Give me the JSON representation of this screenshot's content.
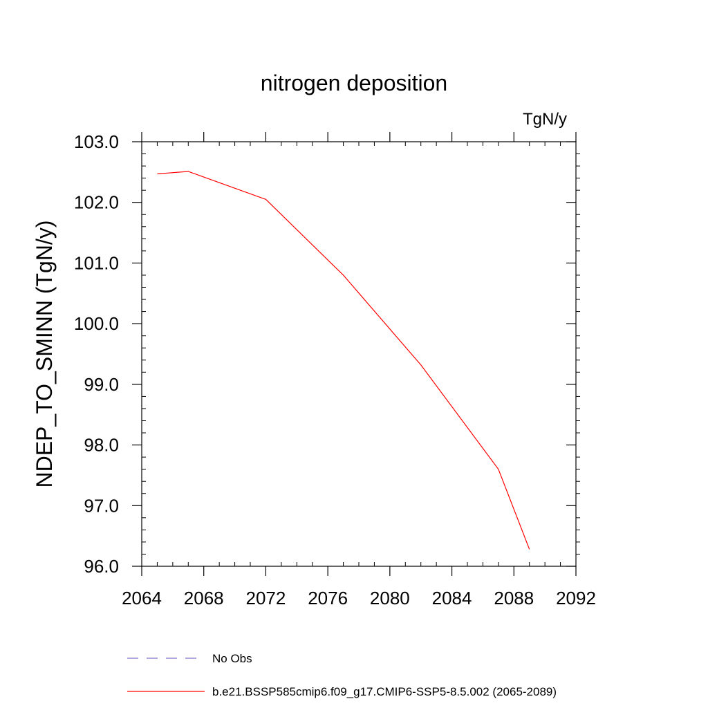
{
  "chart_data": {
    "type": "line",
    "title": "nitrogen deposition",
    "units_label": "TgN/y",
    "xlabel": "",
    "ylabel": "NDEP_TO_SMINN  (TgN/y)",
    "xlim": [
      2064,
      2092
    ],
    "ylim": [
      96.0,
      103.0
    ],
    "x_ticks": [
      2064,
      2068,
      2072,
      2076,
      2080,
      2084,
      2088,
      2092
    ],
    "x_tick_labels": [
      "2064",
      "2068",
      "2072",
      "2076",
      "2080",
      "2084",
      "2088",
      "2092"
    ],
    "y_ticks": [
      96.0,
      97.0,
      98.0,
      99.0,
      100.0,
      101.0,
      102.0,
      103.0
    ],
    "y_tick_labels": [
      "96.0",
      "97.0",
      "98.0",
      "99.0",
      "100.0",
      "101.0",
      "102.0",
      "103.0"
    ],
    "grid": false,
    "legend_position": "bottom",
    "series": [
      {
        "name": "No Obs",
        "color": "#7b74c9",
        "dash": "dashed",
        "x": [],
        "y": []
      },
      {
        "name": "b.e21.BSSP585cmip6.f09_g17.CMIP6-SSP5-8.5.002 (2065-2089)",
        "color": "#ff0000",
        "dash": "solid",
        "x": [
          2065,
          2067,
          2072,
          2077,
          2082,
          2087,
          2089
        ],
        "y": [
          102.47,
          102.51,
          102.05,
          100.8,
          99.32,
          97.6,
          96.28
        ]
      }
    ]
  }
}
